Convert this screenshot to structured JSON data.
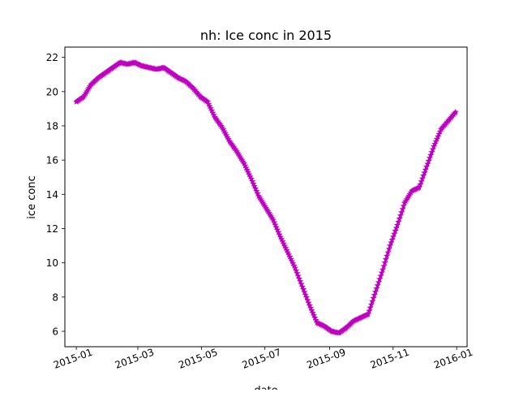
{
  "chart_data": {
    "type": "line",
    "title": "nh: Ice conc in 2015",
    "xlabel": "date",
    "ylabel": "ice conc",
    "xlim": [
      "2014-12-21",
      "2016-01-11"
    ],
    "ylim": [
      5.1,
      22.6
    ],
    "x_ticks": [
      "2015-01",
      "2015-03",
      "2015-05",
      "2015-07",
      "2015-09",
      "2015-11",
      "2016-01"
    ],
    "y_ticks": [
      6,
      8,
      10,
      12,
      14,
      16,
      18,
      20,
      22
    ],
    "x_tick_rotation": "rotated about 20 degrees",
    "grid": false,
    "legend": "none",
    "marker": "star",
    "color": "#bf00bf",
    "series": [
      {
        "x": [
          "2015-01-01",
          "2015-01-08",
          "2015-01-15",
          "2015-01-22",
          "2015-01-29",
          "2015-02-05",
          "2015-02-12",
          "2015-02-19",
          "2015-02-26",
          "2015-03-05",
          "2015-03-12",
          "2015-03-19",
          "2015-03-26",
          "2015-04-02",
          "2015-04-09",
          "2015-04-16",
          "2015-04-23",
          "2015-04-30",
          "2015-05-07",
          "2015-05-14",
          "2015-05-21",
          "2015-05-28",
          "2015-06-04",
          "2015-06-11",
          "2015-06-18",
          "2015-06-25",
          "2015-07-02",
          "2015-07-09",
          "2015-07-16",
          "2015-07-23",
          "2015-07-30",
          "2015-08-06",
          "2015-08-13",
          "2015-08-20",
          "2015-08-27",
          "2015-09-03",
          "2015-09-10",
          "2015-09-17",
          "2015-09-24",
          "2015-10-01",
          "2015-10-08",
          "2015-10-15",
          "2015-10-22",
          "2015-10-29",
          "2015-11-05",
          "2015-11-12",
          "2015-11-19",
          "2015-11-26",
          "2015-12-03",
          "2015-12-10",
          "2015-12-17",
          "2015-12-24",
          "2015-12-31"
        ],
        "y": [
          19.4,
          19.7,
          20.4,
          20.8,
          21.1,
          21.4,
          21.7,
          21.6,
          21.7,
          21.5,
          21.4,
          21.3,
          21.4,
          21.1,
          20.8,
          20.6,
          20.2,
          19.7,
          19.4,
          18.5,
          17.9,
          17.1,
          16.5,
          15.8,
          14.9,
          13.9,
          13.2,
          12.5,
          11.5,
          10.6,
          9.7,
          8.6,
          7.5,
          6.5,
          6.3,
          6.0,
          5.9,
          6.2,
          6.6,
          6.8,
          7.0,
          8.3,
          9.6,
          11.0,
          12.2,
          13.5,
          14.2,
          14.4,
          15.6,
          16.8,
          17.8,
          18.3,
          18.8
        ]
      }
    ]
  }
}
